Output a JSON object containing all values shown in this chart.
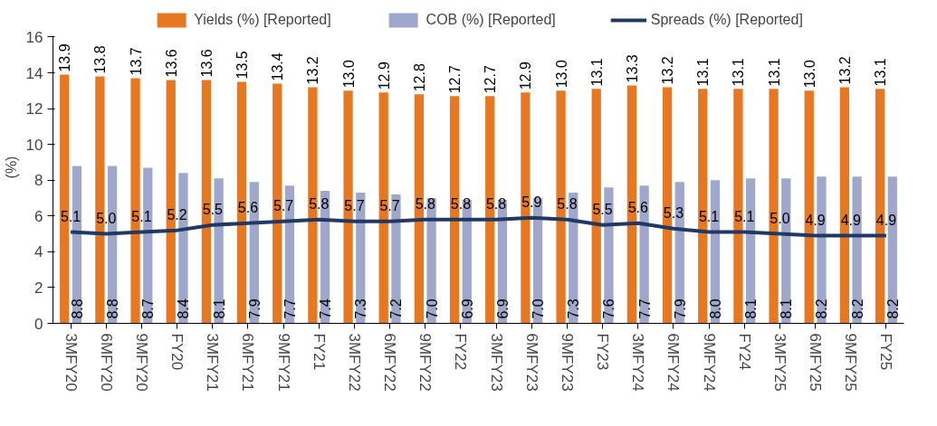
{
  "chart_data": {
    "type": "bar",
    "ylabel": "(%)",
    "ylim": [
      0,
      16
    ],
    "yticks": [
      0,
      2,
      4,
      6,
      8,
      10,
      12,
      14,
      16
    ],
    "grid": false,
    "legend": "top",
    "categories": [
      "3MFY20",
      "6MFY20",
      "9MFY20",
      "FY20",
      "3MFY21",
      "6MFY21",
      "9MFY21",
      "FY21",
      "3MFY22",
      "6MFY22",
      "9MFY22",
      "FY22",
      "3MFY23",
      "6MFY23",
      "9MFY23",
      "FY23",
      "3MFY24",
      "6MFY24",
      "9MFY24",
      "FY24",
      "3MFY25",
      "6MFY25",
      "9MFY25",
      "FY25"
    ],
    "series": [
      {
        "name": "Yields (%) [Reported]",
        "color": "#e87722",
        "values": [
          13.9,
          13.8,
          13.7,
          13.6,
          13.6,
          13.5,
          13.4,
          13.2,
          13.0,
          12.9,
          12.8,
          12.7,
          12.7,
          12.9,
          13.0,
          13.1,
          13.3,
          13.2,
          13.1,
          13.1,
          13.1,
          13.0,
          13.2,
          13.1
        ],
        "value_labels": [
          "13.9",
          "13.8",
          "13.7",
          "13.6",
          "13.6",
          "13.5",
          "13.4",
          "13.2",
          "13.0",
          "12.9",
          "12.8",
          "12.7",
          "12.7",
          "12.9",
          "13.0",
          "13.1",
          "13.3",
          "13.2",
          "13.1",
          "13.1",
          "13.1",
          "13.0",
          "13.2",
          "13.1"
        ]
      },
      {
        "name": "COB (%) [Reported]",
        "color": "#9fa8cc",
        "values": [
          8.8,
          8.8,
          8.7,
          8.4,
          8.1,
          7.9,
          7.7,
          7.4,
          7.3,
          7.2,
          7.0,
          6.9,
          6.9,
          7.0,
          7.3,
          7.6,
          7.7,
          7.9,
          8.0,
          8.1,
          8.1,
          8.2,
          8.2,
          8.2
        ],
        "value_labels": [
          "8.8",
          "8.8",
          "8.7",
          "8.4",
          "8.1",
          "7.9",
          "7.7",
          "7.4",
          "7.3",
          "7.2",
          "7.0",
          "6.9",
          "6.9",
          "7.0",
          "7.3",
          "7.6",
          "7.7",
          "7.9",
          "8.0",
          "8.1",
          "8.1",
          "8.2",
          "8.2",
          "8.2"
        ]
      },
      {
        "name": "Spreads (%) [Reported]",
        "type": "line",
        "color": "#1f3864",
        "values": [
          5.1,
          5.0,
          5.1,
          5.2,
          5.5,
          5.6,
          5.7,
          5.8,
          5.7,
          5.7,
          5.8,
          5.8,
          5.8,
          5.9,
          5.8,
          5.5,
          5.6,
          5.3,
          5.1,
          5.1,
          5.0,
          4.9,
          4.9,
          4.9
        ],
        "value_labels": [
          "5.1",
          "5.0",
          "5.1",
          "5.2",
          "5.5",
          "5.6",
          "5.7",
          "5.8",
          "5.7",
          "5.7",
          "5.8",
          "5.8",
          "5.8",
          "5.9",
          "5.8",
          "5.5",
          "5.6",
          "5.3",
          "5.1",
          "5.1",
          "5.0",
          "4.9",
          "4.9",
          "4.9"
        ]
      }
    ]
  }
}
